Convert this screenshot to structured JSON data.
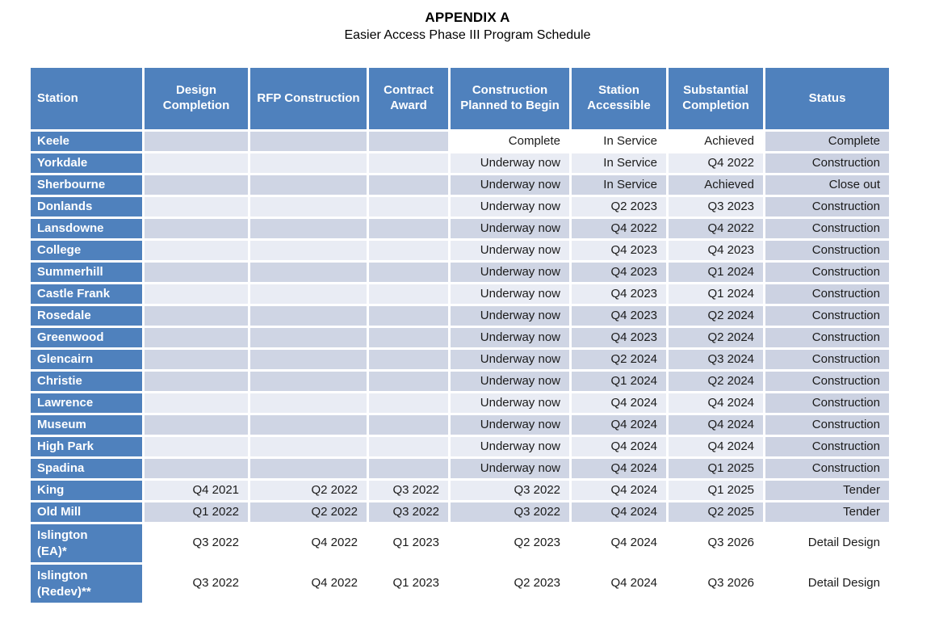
{
  "page": {
    "title": "APPENDIX A",
    "subtitle": "Easier Access Phase III Program Schedule"
  },
  "table": {
    "columns": [
      {
        "label": "Station",
        "slug": "station"
      },
      {
        "label": "Design Completion",
        "slug": "design-completion"
      },
      {
        "label": "RFP Construction",
        "slug": "rfp-construction"
      },
      {
        "label": "Contract Award",
        "slug": "contract-award"
      },
      {
        "label": "Construction Planned to Begin",
        "slug": "construction-planned-to-begin"
      },
      {
        "label": "Station Accessible",
        "slug": "station-accessible"
      },
      {
        "label": "Substantial Completion",
        "slug": "substantial-completion"
      },
      {
        "label": "Status",
        "slug": "status"
      }
    ],
    "rows": [
      {
        "station": "Keele",
        "station_lines": [
          "Keele"
        ],
        "band": "dark",
        "white_cells": [
          3,
          4,
          5
        ],
        "cells": [
          "",
          "",
          "",
          "Complete",
          "In Service",
          "Achieved",
          "Complete"
        ]
      },
      {
        "station": "Yorkdale",
        "station_lines": [
          "Yorkdale"
        ],
        "band": "light",
        "cells": [
          "",
          "",
          "",
          "Underway now",
          "In Service",
          "Q4 2022",
          "Construction"
        ]
      },
      {
        "station": "Sherbourne",
        "station_lines": [
          "Sherbourne"
        ],
        "band": "dark",
        "cells": [
          "",
          "",
          "",
          "Underway now",
          "In Service",
          "Achieved",
          "Close out"
        ]
      },
      {
        "station": "Donlands",
        "station_lines": [
          "Donlands"
        ],
        "band": "light",
        "cells": [
          "",
          "",
          "",
          "Underway now",
          "Q2 2023",
          "Q3 2023",
          "Construction"
        ]
      },
      {
        "station": "Lansdowne",
        "station_lines": [
          "Lansdowne"
        ],
        "band": "dark",
        "cells": [
          "",
          "",
          "",
          "Underway now",
          "Q4 2022",
          "Q4 2022",
          "Construction"
        ]
      },
      {
        "station": "College",
        "station_lines": [
          "College"
        ],
        "band": "light",
        "cells": [
          "",
          "",
          "",
          "Underway now",
          "Q4 2023",
          "Q4 2023",
          "Construction"
        ]
      },
      {
        "station": "Summerhill",
        "station_lines": [
          "Summerhill"
        ],
        "band": "dark",
        "cells": [
          "",
          "",
          "",
          "Underway now",
          "Q4 2023",
          "Q1 2024",
          "Construction"
        ]
      },
      {
        "station": "Castle Frank",
        "station_lines": [
          "Castle Frank"
        ],
        "band": "light",
        "cells": [
          "",
          "",
          "",
          "Underway now",
          "Q4 2023",
          "Q1 2024",
          "Construction"
        ]
      },
      {
        "station": "Rosedale",
        "station_lines": [
          "Rosedale"
        ],
        "band": "dark",
        "cells": [
          "",
          "",
          "",
          "Underway now",
          "Q4 2023",
          "Q2 2024",
          "Construction"
        ]
      },
      {
        "station": "Greenwood",
        "station_lines": [
          "Greenwood"
        ],
        "band": "dark",
        "cells": [
          "",
          "",
          "",
          "Underway now",
          "Q4 2023",
          "Q2 2024",
          "Construction"
        ]
      },
      {
        "station": "Glencairn",
        "station_lines": [
          "Glencairn"
        ],
        "band": "dark",
        "cells": [
          "",
          "",
          "",
          "Underway now",
          "Q2 2024",
          "Q3 2024",
          "Construction"
        ]
      },
      {
        "station": "Christie",
        "station_lines": [
          "Christie"
        ],
        "band": "dark",
        "cells": [
          "",
          "",
          "",
          "Underway now",
          "Q1 2024",
          "Q2 2024",
          "Construction"
        ]
      },
      {
        "station": "Lawrence",
        "station_lines": [
          "Lawrence"
        ],
        "band": "light",
        "cells": [
          "",
          "",
          "",
          "Underway now",
          "Q4 2024",
          "Q4 2024",
          "Construction"
        ]
      },
      {
        "station": "Museum",
        "station_lines": [
          "Museum"
        ],
        "band": "dark",
        "cells": [
          "",
          "",
          "",
          "Underway now",
          "Q4 2024",
          "Q4 2024",
          "Construction"
        ]
      },
      {
        "station": "High Park",
        "station_lines": [
          "High Park"
        ],
        "band": "light",
        "cells": [
          "",
          "",
          "",
          "Underway now",
          "Q4 2024",
          "Q4 2024",
          "Construction"
        ]
      },
      {
        "station": "Spadina",
        "station_lines": [
          "Spadina"
        ],
        "band": "dark",
        "cells": [
          "",
          "",
          "",
          "Underway now",
          "Q4 2024",
          "Q1 2025",
          "Construction"
        ]
      },
      {
        "station": "King",
        "station_lines": [
          "King"
        ],
        "band": "light",
        "cells": [
          "Q4 2021",
          "Q2 2022",
          "Q3 2022",
          "Q3 2022",
          "Q4 2024",
          "Q1 2025",
          "Tender"
        ]
      },
      {
        "station": "Old Mill",
        "station_lines": [
          "Old Mill"
        ],
        "band": "dark",
        "cells": [
          "Q1 2022",
          "Q2 2022",
          "Q3 2022",
          "Q3 2022",
          "Q4 2024",
          "Q2 2025",
          "Tender"
        ]
      },
      {
        "station": "Islington (EA)*",
        "station_lines": [
          "Islington",
          "(EA)*"
        ],
        "band": "white",
        "tall": true,
        "cells": [
          "Q3 2022",
          "Q4 2022",
          "Q1 2023",
          "Q2 2023",
          "Q4 2024",
          "Q3 2026",
          "Detail Design"
        ]
      },
      {
        "station": "Islington (Redev)**",
        "station_lines": [
          "Islington",
          "(Redev)**"
        ],
        "band": "white",
        "tall": true,
        "cells": [
          "Q3 2022",
          "Q4 2022",
          "Q1 2023",
          "Q2 2023",
          "Q4 2024",
          "Q3 2026",
          "Detail Design"
        ]
      }
    ],
    "colors": {
      "header_blue": "#4F81BD",
      "band_dark": "#CFD5E4",
      "band_light": "#E9ECF4",
      "status_fill": "#CCD2E2",
      "white": "#FFFFFF",
      "header_text": "#FFFFFF",
      "body_text": "#1B1B1B"
    }
  }
}
